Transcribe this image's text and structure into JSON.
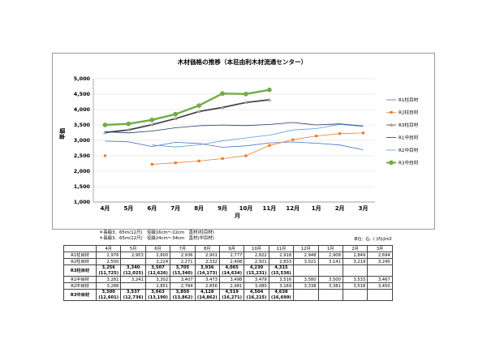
{
  "chart_data": {
    "type": "line",
    "title": "木材価格の推移（本荘由利木材流通センター）",
    "ylabel": "単価",
    "xlabel": "月",
    "categories": [
      "4月",
      "5月",
      "6月",
      "7月",
      "8月",
      "9月",
      "10月",
      "11月",
      "12月",
      "1月",
      "2月",
      "3月"
    ],
    "y_ticks": [
      "5,000",
      "4,500",
      "4,000",
      "3,500",
      "3,000",
      "2,500",
      "2,000",
      "1,500",
      "1,000"
    ],
    "ylim": [
      1000,
      5000
    ],
    "series": [
      {
        "name": "R1柱目材",
        "color": "#4472c4",
        "marker": "none",
        "values": [
          2976,
          2953,
          2800,
          2936,
          2901,
          2777,
          2822,
          2918,
          2948,
          2908,
          2849,
          2694
        ]
      },
      {
        "name": "R2柱目材",
        "color": "#ed7d31",
        "marker": "square",
        "values": [
          2500,
          null,
          2224,
          2271,
          2332,
          2408,
          2501,
          2833,
          3021,
          3141,
          3219,
          3240
        ]
      },
      {
        "name": "R3柱目材",
        "color": "#404040",
        "marker": "triangle",
        "values": [
          3256,
          3340,
          3507,
          3705,
          3936,
          4065,
          4230,
          4315,
          null,
          null,
          null,
          null
        ]
      },
      {
        "name": "R1中目材",
        "color": "#1f3864",
        "marker": "none",
        "values": [
          3281,
          3241,
          3302,
          3407,
          3473,
          3498,
          3479,
          3516,
          3580,
          3500,
          3533,
          3467
        ]
      },
      {
        "name": "R2中目材",
        "color": "#5b9bd5",
        "marker": "none",
        "values": [
          3286,
          null,
          2851,
          2784,
          2856,
          2981,
          3080,
          3169,
          3338,
          3381,
          3518,
          3450
        ]
      },
      {
        "name": "R3中目材",
        "color": "#70ad47",
        "marker": "circle",
        "values": [
          3500,
          3537,
          3663,
          3850,
          4128,
          4519,
          4504,
          4638,
          null,
          null,
          null,
          null
        ]
      }
    ],
    "legend_position": "right",
    "grid": true
  },
  "notes": [
    "＊長級3．65m(12尺)　径級16cm～22cm　直材(柱目材)",
    "＊長級3．65m(12尺)　径級24cm～34cm　直材(中目材)"
  ],
  "unit_note": "単位：石、( )内はm3",
  "table": {
    "months": [
      "4月",
      "5月",
      "6月",
      "7月",
      "8月",
      "9月",
      "10月",
      "11月",
      "12月",
      "1月",
      "2月",
      "3月"
    ],
    "rows": [
      {
        "label": "R1柱目材",
        "cells": [
          "2,976",
          "2,953",
          "2,800",
          "2,936",
          "2,901",
          "2,777",
          "2,822",
          "2,918",
          "2,948",
          "2,908",
          "2,849",
          "2,694"
        ]
      },
      {
        "label": "R2柱目材",
        "cells": [
          "2,500",
          "",
          "2,224",
          "2,271",
          "2,332",
          "2,408",
          "2,501",
          "2,833",
          "3,021",
          "3,141",
          "3,219",
          "3,240"
        ]
      },
      {
        "label": "R3柱目材",
        "cells": [
          "3,256",
          "3,340",
          "3,507",
          "3,705",
          "3,936",
          "4,065",
          "4,230",
          "4,315",
          "",
          "",
          "",
          ""
        ],
        "sub": [
          "(11,725)",
          "(12,025)",
          "(12,626)",
          "(13,340)",
          "(14,173)",
          "(14,634)",
          "(15,231)",
          "(15,536)",
          "",
          "",
          "",
          ""
        ]
      },
      {
        "label": "R1中目材",
        "cells": [
          "3,281",
          "3,241",
          "3,302",
          "3,407",
          "3,473",
          "3,498",
          "3,479",
          "3,516",
          "3,580",
          "3,500",
          "3,533",
          "3,467"
        ]
      },
      {
        "label": "R2中目材",
        "cells": [
          "3,286",
          "",
          "2,851",
          "2,784",
          "2,856",
          "2,981",
          "3,080",
          "3,169",
          "3,338",
          "3,381",
          "3,518",
          "3,450"
        ]
      },
      {
        "label": "R3中目材",
        "cells": [
          "3,500",
          "3,537",
          "3,663",
          "3,850",
          "4,128",
          "4,519",
          "4,504",
          "4,638",
          "",
          "",
          "",
          ""
        ],
        "sub": [
          "(12,601)",
          "(12,736)",
          "(13,190)",
          "(13,862)",
          "(14,862)",
          "(16,271)",
          "(16,215)",
          "(16,699)",
          "",
          "",
          "",
          ""
        ]
      }
    ]
  }
}
